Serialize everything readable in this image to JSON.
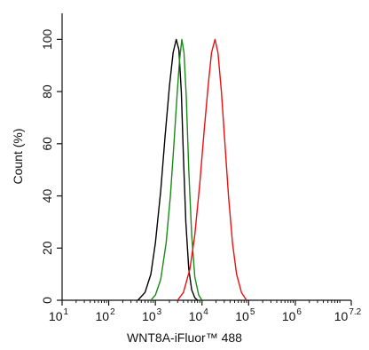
{
  "chart_data": {
    "type": "line",
    "xlabel": "WNT8A-iFluor™ 488",
    "ylabel": "Count (%)",
    "x_scale": "log",
    "xlim": [
      10,
      15848931.92
    ],
    "ylim": [
      0,
      110
    ],
    "x_ticks": [
      {
        "base": "10",
        "exp": "1",
        "value": 10
      },
      {
        "base": "10",
        "exp": "2",
        "value": 100
      },
      {
        "base": "10",
        "exp": "3",
        "value": 1000
      },
      {
        "base": "10",
        "exp": "4",
        "value": 10000
      },
      {
        "base": "10",
        "exp": "5",
        "value": 100000
      },
      {
        "base": "10",
        "exp": "6",
        "value": 1000000
      },
      {
        "base": "10",
        "exp": "7.2",
        "value": 15848931.92
      }
    ],
    "y_ticks": [
      "0",
      "20",
      "40",
      "60",
      "80",
      "100"
    ],
    "grid": false,
    "series": [
      {
        "color": "#000000",
        "x": [
          420,
          600,
          800,
          1000,
          1300,
          1600,
          2000,
          2400,
          2800,
          3200,
          3600,
          4000,
          4500,
          5200,
          6000,
          7000,
          8000
        ],
        "y": [
          0,
          3,
          10,
          22,
          42,
          62,
          82,
          95,
          100,
          96,
          80,
          55,
          30,
          12,
          4,
          1,
          0
        ]
      },
      {
        "color": "#1a8a1a",
        "x": [
          800,
          1000,
          1300,
          1700,
          2100,
          2500,
          2900,
          3300,
          3700,
          4100,
          4600,
          5200,
          6000,
          7000,
          8500,
          10000
        ],
        "y": [
          0,
          2,
          8,
          22,
          40,
          60,
          78,
          92,
          100,
          95,
          78,
          50,
          25,
          9,
          2,
          0
        ]
      },
      {
        "color": "#e81010",
        "x": [
          3000,
          4000,
          5500,
          7000,
          9000,
          11000,
          13500,
          16000,
          19000,
          22000,
          26000,
          31000,
          37000,
          45000,
          55000,
          70000,
          90000
        ],
        "y": [
          0,
          3,
          12,
          25,
          45,
          64,
          82,
          95,
          100,
          95,
          80,
          60,
          40,
          22,
          10,
          3,
          0
        ]
      }
    ]
  }
}
